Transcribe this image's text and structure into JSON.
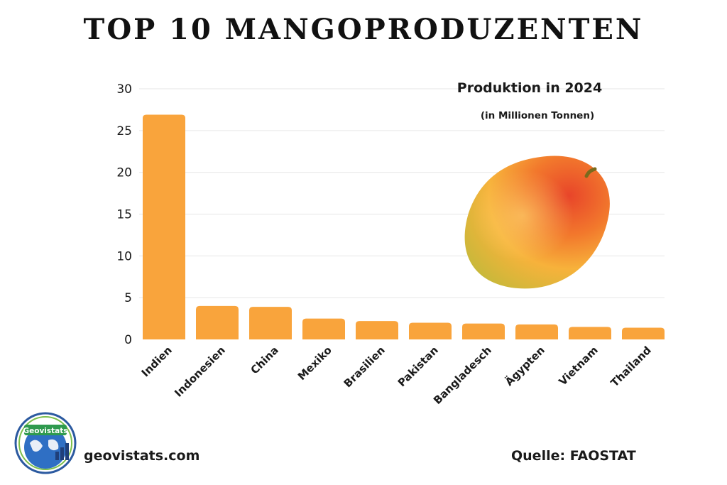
{
  "title": "TOP 10 MANGOPRODUZENTEN",
  "footer": {
    "website": "geovistats.com",
    "source": "Quelle: FAOSTAT",
    "logo_text": "Geovistats"
  },
  "image": {
    "icon": "mango-icon"
  },
  "colors": {
    "bar": "#f9a43c",
    "grid": "#e6e6e6",
    "text": "#1a1a1a"
  },
  "chart_data": {
    "type": "bar",
    "subtitle": "Produktion in 2024",
    "unit": "(in Millionen Tonnen)",
    "categories": [
      "Indien",
      "Indonesien",
      "China",
      "Mexiko",
      "Brasilien",
      "Pakistan",
      "Bangladesch",
      "Ägypten",
      "Vietnam",
      "Thailand"
    ],
    "values": [
      26.9,
      4.0,
      3.9,
      2.5,
      2.2,
      2.0,
      1.9,
      1.8,
      1.5,
      1.4
    ],
    "yticks": [
      0,
      5,
      10,
      15,
      20,
      25,
      30
    ],
    "ylim": [
      0,
      30
    ],
    "grid": true,
    "legend": "none"
  }
}
